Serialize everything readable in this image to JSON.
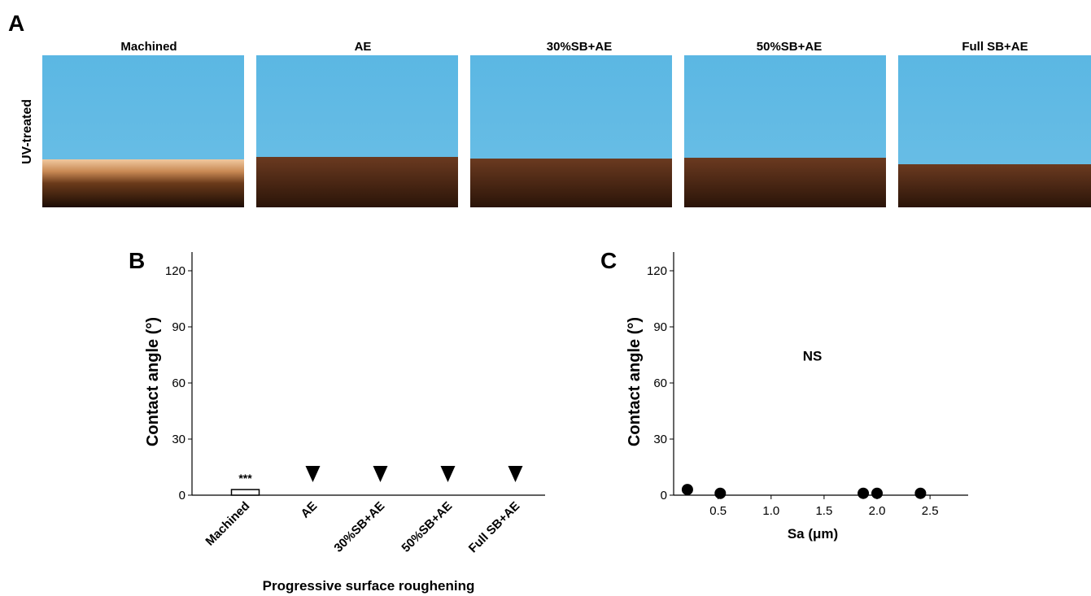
{
  "panel_a": {
    "label": "A",
    "row_label": "UV-treated",
    "columns": [
      "Machined",
      "AE",
      "30%SB+AE",
      "50%SB+AE",
      "Full SB+AE"
    ]
  },
  "chart_data": [
    {
      "type": "bar",
      "panel_label": "B",
      "categories": [
        "Machined",
        "AE",
        "30%SB+AE",
        "50%SB+AE",
        "Full SB+AE"
      ],
      "values": [
        3,
        0,
        0,
        0,
        0
      ],
      "value_labels": [
        "***",
        null,
        null,
        null,
        null
      ],
      "color": "#ffffff",
      "ylim": [
        0,
        130
      ],
      "yticks": [
        0,
        30,
        60,
        90,
        120
      ],
      "xlabel": "Progressive surface roughening",
      "ylabel": "Contact angle (°)"
    },
    {
      "type": "scatter",
      "panel_label": "C",
      "x": [
        0.21,
        0.52,
        1.87,
        2.0,
        2.41
      ],
      "values": [
        3,
        1,
        1,
        1,
        1
      ],
      "color": "#000000",
      "xlim": [
        0.08,
        2.86
      ],
      "xticks": [
        0.5,
        {
          "value": 1,
          "label": "1.0"
        },
        1.5,
        {
          "value": 2,
          "label": "2.0"
        },
        2.5
      ],
      "ylim": [
        0,
        130
      ],
      "yticks": [
        0,
        30,
        60,
        90,
        120
      ],
      "xlabel": "Sa (μm)",
      "ylabel": "Contact angle (°)",
      "annotation": {
        "text": "NS",
        "x": 1.39,
        "y": 72
      }
    }
  ]
}
